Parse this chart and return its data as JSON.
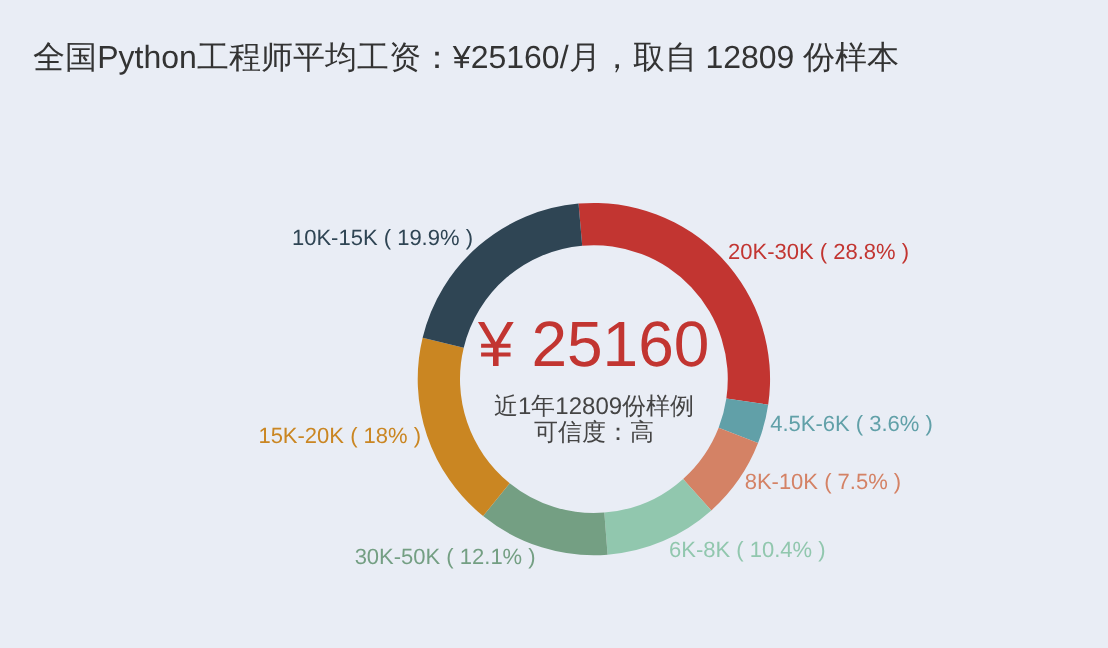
{
  "chart_data": {
    "type": "donut",
    "title": "全国Python工程师平均工资：¥25160/月，取自 12809 份样本",
    "categories": [
      "20K-30K",
      "4.5K-6K",
      "8K-10K",
      "6K-8K",
      "30K-50K",
      "15K-20K",
      "10K-15K"
    ],
    "values": [
      28.8,
      3.6,
      7.5,
      10.4,
      12.1,
      18,
      19.9
    ],
    "value_labels": [
      "( 28.8% )",
      "( 3.6% )",
      "( 7.5% )",
      "( 10.4% )",
      "( 12.1% )",
      "( 18% )",
      "( 19.9% )"
    ],
    "colors": [
      "#c23531",
      "#61a0a8",
      "#d48265",
      "#91c7ae",
      "#749f83",
      "#ca8622",
      "#2f4554"
    ],
    "annotations": [
      "¥ 25160",
      "近1年12809份样例",
      "可信度：高"
    ]
  }
}
